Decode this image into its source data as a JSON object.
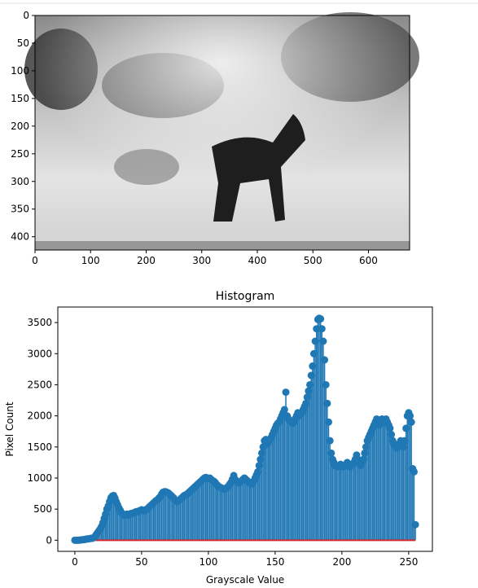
{
  "chart_data": [
    {
      "type": "image",
      "xlim": [
        0,
        674
      ],
      "ylim": [
        424,
        0
      ],
      "xticks": [
        0,
        100,
        200,
        300,
        400,
        500,
        600
      ],
      "yticks": [
        0,
        50,
        100,
        150,
        200,
        250,
        300,
        350,
        400
      ]
    },
    {
      "type": "stem",
      "title": "Histogram",
      "x_label": "Grayscale Value",
      "y_label": "Pixel Count",
      "color": "#1f77b4",
      "baseline_color": "#d62728",
      "xlim": [
        -12.75,
        267.75
      ],
      "ylim": [
        -179,
        3750
      ],
      "xticks": [
        0,
        50,
        100,
        150,
        200,
        250
      ],
      "yticks": [
        0,
        500,
        1000,
        1500,
        2000,
        2500,
        3000,
        3500
      ],
      "x": [
        0,
        1,
        2,
        3,
        4,
        5,
        6,
        7,
        8,
        9,
        10,
        11,
        12,
        13,
        14,
        15,
        16,
        17,
        18,
        19,
        20,
        21,
        22,
        23,
        24,
        25,
        26,
        27,
        28,
        29,
        30,
        31,
        32,
        33,
        34,
        35,
        36,
        37,
        38,
        39,
        40,
        41,
        42,
        43,
        44,
        45,
        46,
        47,
        48,
        49,
        50,
        51,
        52,
        53,
        54,
        55,
        56,
        57,
        58,
        59,
        60,
        61,
        62,
        63,
        64,
        65,
        66,
        67,
        68,
        69,
        70,
        71,
        72,
        73,
        74,
        75,
        76,
        77,
        78,
        79,
        80,
        81,
        82,
        83,
        84,
        85,
        86,
        87,
        88,
        89,
        90,
        91,
        92,
        93,
        94,
        95,
        96,
        97,
        98,
        99,
        100,
        101,
        102,
        103,
        104,
        105,
        106,
        107,
        108,
        109,
        110,
        111,
        112,
        113,
        114,
        115,
        116,
        117,
        118,
        119,
        120,
        121,
        122,
        123,
        124,
        125,
        126,
        127,
        128,
        129,
        130,
        131,
        132,
        133,
        134,
        135,
        136,
        137,
        138,
        139,
        140,
        141,
        142,
        143,
        144,
        145,
        146,
        147,
        148,
        149,
        150,
        151,
        152,
        153,
        154,
        155,
        156,
        157,
        158,
        159,
        160,
        161,
        162,
        163,
        164,
        165,
        166,
        167,
        168,
        169,
        170,
        171,
        172,
        173,
        174,
        175,
        176,
        177,
        178,
        179,
        180,
        181,
        182,
        183,
        184,
        185,
        186,
        187,
        188,
        189,
        190,
        191,
        192,
        193,
        194,
        195,
        196,
        197,
        198,
        199,
        200,
        201,
        202,
        203,
        204,
        205,
        206,
        207,
        208,
        209,
        210,
        211,
        212,
        213,
        214,
        215,
        216,
        217,
        218,
        219,
        220,
        221,
        222,
        223,
        224,
        225,
        226,
        227,
        228,
        229,
        230,
        231,
        232,
        233,
        234,
        235,
        236,
        237,
        238,
        239,
        240,
        241,
        242,
        243,
        244,
        245,
        246,
        247,
        248,
        249,
        250,
        251,
        252,
        253,
        254,
        255
      ],
      "values": [
        0,
        0,
        0,
        0,
        5,
        5,
        10,
        10,
        15,
        20,
        20,
        25,
        30,
        30,
        40,
        60,
        90,
        120,
        150,
        180,
        220,
        280,
        350,
        420,
        500,
        550,
        620,
        680,
        710,
        720,
        680,
        620,
        570,
        520,
        480,
        440,
        420,
        400,
        410,
        420,
        400,
        420,
        430,
        430,
        440,
        450,
        460,
        460,
        470,
        480,
        490,
        480,
        470,
        490,
        500,
        520,
        540,
        560,
        580,
        600,
        620,
        640,
        650,
        680,
        700,
        740,
        770,
        780,
        780,
        770,
        760,
        740,
        720,
        700,
        680,
        650,
        630,
        620,
        640,
        660,
        680,
        700,
        720,
        730,
        740,
        760,
        780,
        800,
        820,
        840,
        860,
        880,
        900,
        920,
        940,
        960,
        980,
        1000,
        1010,
        1000,
        990,
        1000,
        980,
        960,
        950,
        930,
        900,
        880,
        860,
        850,
        840,
        830,
        820,
        830,
        850,
        870,
        900,
        930,
        980,
        1040,
        980,
        950,
        930,
        920,
        940,
        960,
        980,
        1000,
        980,
        960,
        940,
        920,
        900,
        920,
        950,
        1000,
        1050,
        1100,
        1200,
        1300,
        1400,
        1500,
        1600,
        1620,
        1550,
        1580,
        1620,
        1650,
        1700,
        1750,
        1800,
        1850,
        1880,
        1900,
        1950,
        2000,
        2050,
        2100,
        2380,
        2000,
        1950,
        1920,
        1900,
        1880,
        1900,
        1950,
        2000,
        2050,
        2000,
        2020,
        2050,
        2100,
        2150,
        2200,
        2300,
        2400,
        2500,
        2650,
        2800,
        3000,
        3200,
        3400,
        3550,
        3570,
        3560,
        3400,
        3200,
        2900,
        2500,
        2200,
        1900,
        1600,
        1400,
        1300,
        1250,
        1200,
        1200,
        1180,
        1200,
        1220,
        1200,
        1180,
        1200,
        1220,
        1250,
        1200,
        1180,
        1200,
        1220,
        1250,
        1300,
        1370,
        1300,
        1250,
        1200,
        1250,
        1300,
        1400,
        1500,
        1600,
        1650,
        1700,
        1750,
        1800,
        1850,
        1900,
        1950,
        1900,
        1850,
        1900,
        1950,
        1920,
        1900,
        1950,
        1900,
        1850,
        1800,
        1700,
        1600,
        1550,
        1500,
        1480,
        1500,
        1550,
        1600,
        1550,
        1500,
        1600,
        1800,
        2000,
        2050,
        2000,
        1900,
        1150,
        1100,
        250
      ]
    }
  ]
}
